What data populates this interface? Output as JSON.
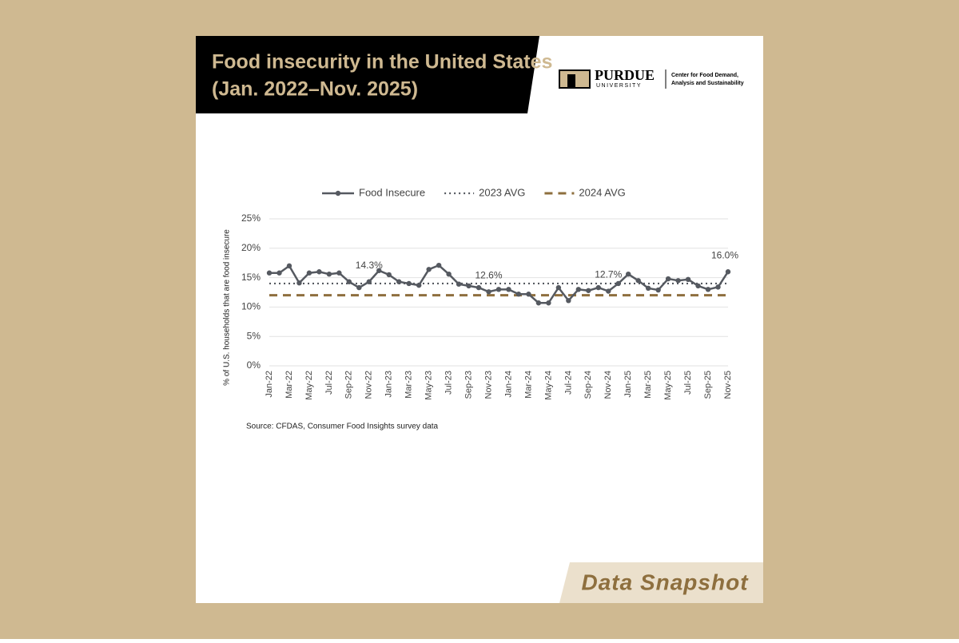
{
  "header": {
    "title_lines": [
      "Food insecurity in the United States",
      "(Jan. 2022–Nov. 2025)"
    ]
  },
  "logo": {
    "name": "PURDUE",
    "subname": "UNIVERSITY",
    "center_lines": [
      "Center for Food Demand,",
      "Analysis and Sustainability"
    ]
  },
  "chart_data": {
    "type": "line",
    "y_label": "% of U.S. households that are food insecure",
    "categories": [
      "Jan-22",
      null,
      "Mar-22",
      null,
      "May-22",
      null,
      "Jul-22",
      null,
      "Sep-22",
      null,
      "Nov-22",
      null,
      "Jan-23",
      null,
      "Mar-23",
      null,
      "May-23",
      null,
      "Jul-23",
      null,
      "Sep-23",
      null,
      "Nov-23",
      null,
      "Jan-24",
      null,
      "Mar-24",
      null,
      "May-24",
      null,
      "Jul-24",
      null,
      "Sep-24",
      null,
      "Nov-24",
      null,
      "Jan-25",
      null,
      "Mar-25",
      null,
      "May-25",
      null,
      "Jul-25",
      null,
      "Sep-25",
      null,
      "Nov-25"
    ],
    "series": [
      {
        "name": "Food Insecure",
        "color": "#555960",
        "values": [
          15.8,
          15.8,
          17.0,
          14.1,
          15.8,
          16.0,
          15.6,
          15.8,
          14.3,
          13.3,
          14.3,
          16.2,
          15.5,
          14.3,
          14.0,
          13.7,
          16.4,
          17.1,
          15.6,
          13.9,
          13.6,
          13.3,
          12.6,
          13.0,
          13.0,
          12.2,
          12.2,
          10.7,
          10.7,
          13.3,
          11.1,
          13.0,
          12.8,
          13.3,
          12.7,
          14.0,
          15.6,
          14.5,
          13.2,
          12.9,
          14.8,
          14.5,
          14.7,
          13.6,
          13.0,
          13.4,
          16.0
        ],
        "value_labels": [
          null,
          null,
          null,
          null,
          null,
          null,
          null,
          null,
          null,
          null,
          "14.3%",
          null,
          null,
          null,
          null,
          null,
          null,
          null,
          null,
          null,
          null,
          null,
          "12.6%",
          null,
          null,
          null,
          null,
          null,
          null,
          null,
          null,
          null,
          null,
          null,
          "12.7%",
          null,
          null,
          null,
          null,
          null,
          null,
          null,
          null,
          null,
          null,
          null,
          "16.0%"
        ]
      }
    ],
    "reference_lines": [
      {
        "name": "2023 AVG",
        "value": 14.0,
        "color": "#555960",
        "style": "dotted"
      },
      {
        "name": "2024 AVG",
        "value": 12.0,
        "color": "#8e6f3e",
        "style": "dashed"
      }
    ],
    "ylim": [
      0,
      25
    ],
    "yticks": [
      {
        "value": 0,
        "label": "0%"
      },
      {
        "value": 5,
        "label": "5%"
      },
      {
        "value": 10,
        "label": "10%"
      },
      {
        "value": 15,
        "label": "15%"
      },
      {
        "value": 20,
        "label": "20%"
      },
      {
        "value": 25,
        "label": "25%"
      }
    ],
    "grid": true,
    "legend": "top"
  },
  "source": "Source: CFDAS, Consumer Food Insights survey data",
  "footer_tag": "Data Snapshot"
}
